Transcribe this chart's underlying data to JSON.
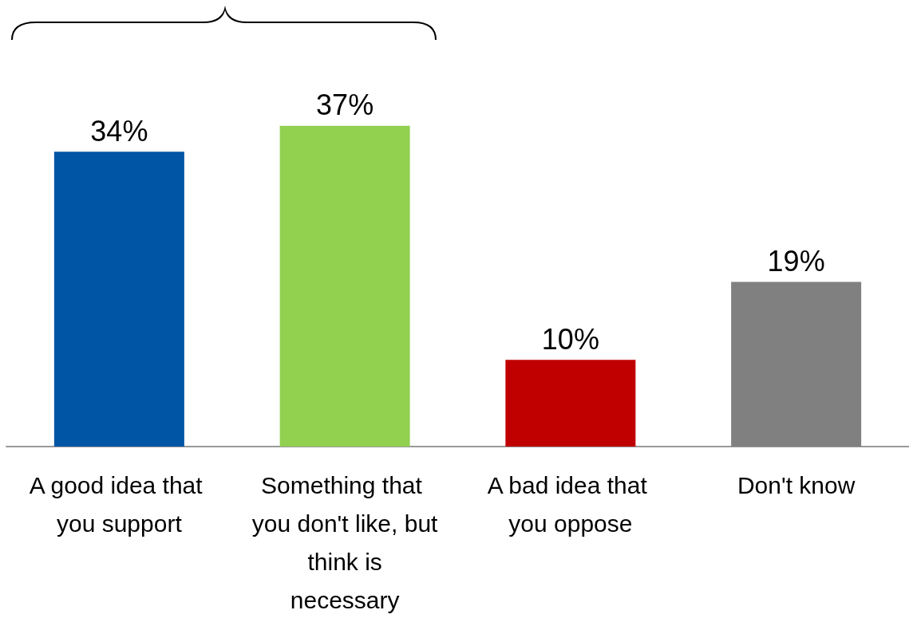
{
  "chart_data": {
    "type": "bar",
    "categories": [
      "A good idea that you support",
      "Something that you don't like, but think is necessary",
      "A bad idea that you oppose",
      "Don't know"
    ],
    "values": [
      34,
      37,
      10,
      19
    ],
    "colors": [
      "#0055a5",
      "#92d050",
      "#c00000",
      "#808080"
    ],
    "value_labels": [
      "34%",
      "37%",
      "10%",
      "19%"
    ]
  }
}
